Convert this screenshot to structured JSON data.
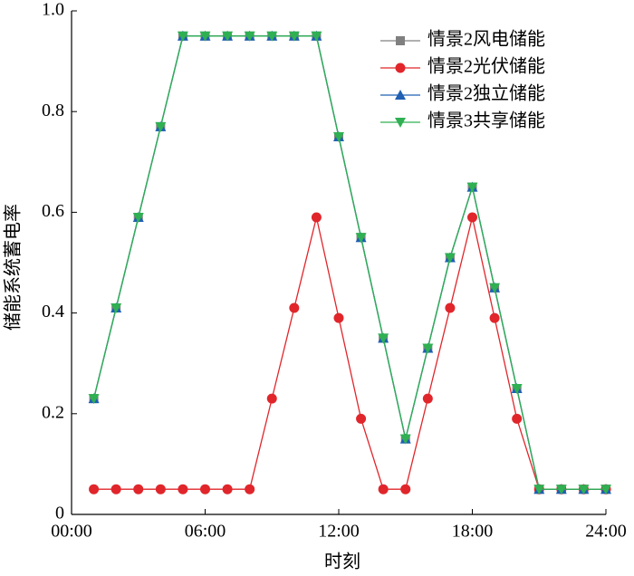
{
  "chart_data": {
    "type": "line",
    "x_label": "时刻",
    "y_label": "储能系统蓄电率",
    "x": [
      1,
      2,
      3,
      4,
      5,
      6,
      7,
      8,
      9,
      10,
      11,
      12,
      13,
      14,
      15,
      16,
      17,
      18,
      19,
      20,
      21,
      22,
      23,
      24
    ],
    "series": [
      {
        "name": "情景2风电储能",
        "color": "#808080",
        "marker": "square",
        "values": [
          0.23,
          0.41,
          0.59,
          0.77,
          0.95,
          0.95,
          0.95,
          0.95,
          0.95,
          0.95,
          0.95,
          0.75,
          0.55,
          0.35,
          0.15,
          0.33,
          0.51,
          0.65,
          0.45,
          0.25,
          0.05,
          0.05,
          0.05,
          0.05
        ]
      },
      {
        "name": "情景2光伏储能",
        "color": "#e0262b",
        "marker": "circle",
        "values": [
          0.05,
          0.05,
          0.05,
          0.05,
          0.05,
          0.05,
          0.05,
          0.05,
          0.23,
          0.41,
          0.59,
          0.39,
          0.19,
          0.05,
          0.05,
          0.23,
          0.41,
          0.59,
          0.39,
          0.19,
          0.05,
          0.05,
          0.05,
          0.05
        ]
      },
      {
        "name": "情景2独立储能",
        "color": "#1f5fb4",
        "marker": "triangle-up",
        "values": [
          0.23,
          0.41,
          0.59,
          0.77,
          0.95,
          0.95,
          0.95,
          0.95,
          0.95,
          0.95,
          0.95,
          0.75,
          0.55,
          0.35,
          0.15,
          0.33,
          0.51,
          0.65,
          0.45,
          0.25,
          0.05,
          0.05,
          0.05,
          0.05
        ]
      },
      {
        "name": "情景3共享储能",
        "color": "#2fb052",
        "marker": "triangle-down",
        "values": [
          0.23,
          0.41,
          0.59,
          0.77,
          0.95,
          0.95,
          0.95,
          0.95,
          0.95,
          0.95,
          0.95,
          0.75,
          0.55,
          0.35,
          0.15,
          0.33,
          0.51,
          0.65,
          0.45,
          0.25,
          0.05,
          0.05,
          0.05,
          0.05
        ]
      }
    ],
    "xlim": [
      0,
      24
    ],
    "xticks": [
      {
        "value": 0,
        "label": "00:00"
      },
      {
        "value": 6,
        "label": "06:00"
      },
      {
        "value": 12,
        "label": "12:00"
      },
      {
        "value": 18,
        "label": "18:00"
      },
      {
        "value": 24,
        "label": "24:00"
      }
    ],
    "ylim": [
      0,
      1
    ],
    "yticks": [
      0,
      0.2,
      0.4,
      0.6,
      0.8,
      {
        "value": 1,
        "label": "1.0"
      }
    ],
    "legend": "upper-right",
    "grid": false
  }
}
